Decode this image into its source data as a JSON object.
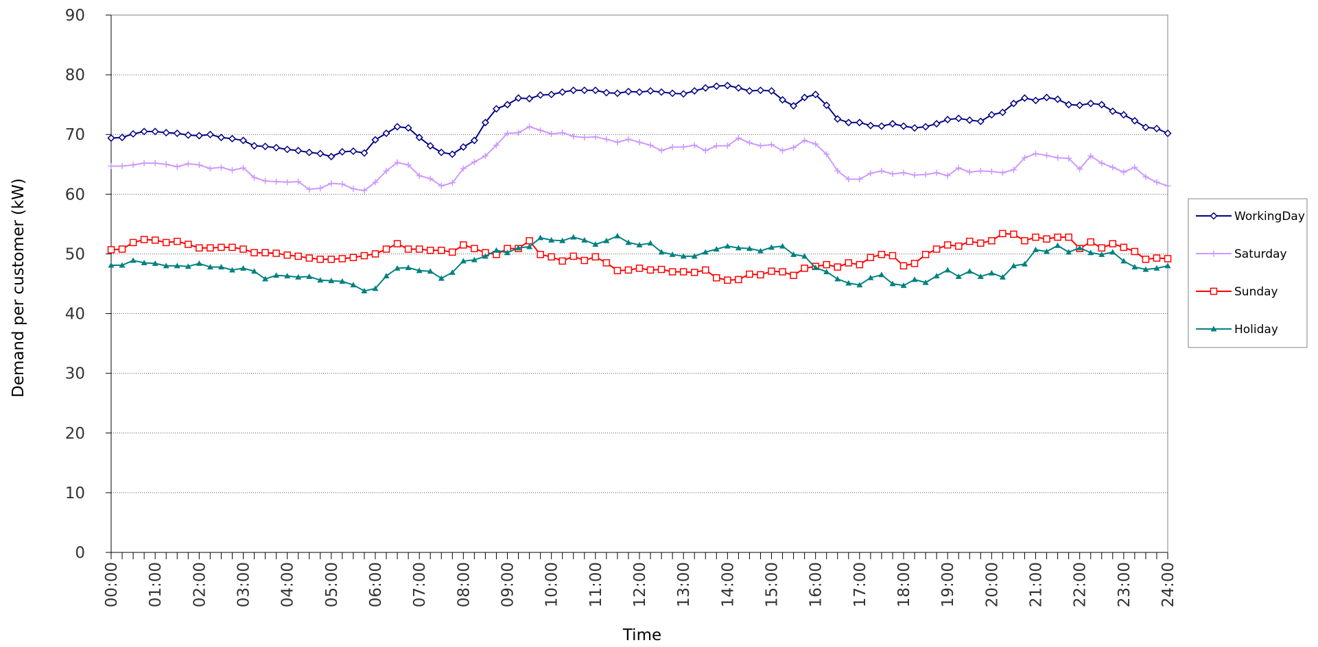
{
  "chart_data": {
    "type": "line",
    "x_label": "Time",
    "y_label": "Demand per customer (kW)",
    "categories": [
      "00:00",
      null,
      null,
      null,
      "01:00",
      null,
      null,
      null,
      "02:00",
      null,
      null,
      null,
      "03:00",
      null,
      null,
      null,
      "04:00",
      null,
      null,
      null,
      "05:00",
      null,
      null,
      null,
      "06:00",
      null,
      null,
      null,
      "07:00",
      null,
      null,
      null,
      "08:00",
      null,
      null,
      null,
      "09:00",
      null,
      null,
      null,
      "10:00",
      null,
      null,
      null,
      "11:00",
      null,
      null,
      null,
      "12:00",
      null,
      null,
      null,
      "13:00",
      null,
      null,
      null,
      "14:00",
      null,
      null,
      null,
      "15:00",
      null,
      null,
      null,
      "16:00",
      null,
      null,
      null,
      "17:00",
      null,
      null,
      null,
      "18:00",
      null,
      null,
      null,
      "19:00",
      null,
      null,
      null,
      "20:00",
      null,
      null,
      null,
      "21:00",
      null,
      null,
      null,
      "22:00",
      null,
      null,
      null,
      "23:00",
      null,
      null,
      null,
      "24:00"
    ],
    "ylim": [
      0,
      90
    ],
    "yticks": [
      0,
      10,
      20,
      30,
      40,
      50,
      60,
      70,
      80,
      90
    ],
    "grid": true,
    "legend": "right",
    "series": [
      {
        "name": "WorkingDay",
        "color": "#000080",
        "marker": "diamond",
        "values": [
          69.4,
          69.5,
          70.1,
          70.5,
          70.5,
          70.3,
          70.2,
          69.9,
          69.8,
          70.0,
          69.5,
          69.3,
          69.0,
          68.1,
          68.0,
          67.8,
          67.5,
          67.3,
          67.0,
          66.8,
          66.3,
          67.1,
          67.2,
          66.9,
          69.1,
          70.2,
          71.3,
          71.1,
          69.5,
          68.1,
          67.0,
          66.7,
          67.9,
          69.0,
          72.0,
          74.3,
          75.0,
          76.1,
          76.0,
          76.6,
          76.7,
          77.1,
          77.4,
          77.4,
          77.4,
          77.0,
          76.9,
          77.2,
          77.1,
          77.3,
          77.1,
          76.9,
          76.8,
          77.3,
          77.8,
          78.1,
          78.2,
          77.8,
          77.3,
          77.4,
          77.3,
          75.8,
          74.8,
          76.2,
          76.7,
          74.9,
          72.6,
          72.0,
          72.0,
          71.5,
          71.4,
          71.8,
          71.4,
          71.1,
          71.3,
          71.8,
          72.5,
          72.7,
          72.4,
          72.2,
          73.3,
          73.7,
          75.2,
          76.1,
          75.7,
          76.2,
          75.9,
          75.0,
          74.9,
          75.2,
          75.0,
          73.9,
          73.3,
          72.3,
          71.2,
          71.0,
          70.2
        ]
      },
      {
        "name": "Saturday",
        "color": "#cc99ff",
        "marker": "plus",
        "values": [
          64.7,
          64.7,
          64.9,
          65.2,
          65.2,
          65.0,
          64.6,
          65.1,
          64.9,
          64.3,
          64.5,
          64.0,
          64.4,
          62.8,
          62.2,
          62.1,
          62.0,
          62.1,
          60.8,
          61.0,
          61.8,
          61.7,
          60.9,
          60.6,
          62.0,
          63.9,
          65.3,
          64.9,
          63.1,
          62.6,
          61.4,
          61.9,
          64.3,
          65.4,
          66.4,
          68.2,
          70.2,
          70.3,
          71.3,
          70.7,
          70.1,
          70.3,
          69.7,
          69.5,
          69.6,
          69.2,
          68.7,
          69.2,
          68.7,
          68.2,
          67.3,
          67.9,
          67.9,
          68.2,
          67.3,
          68.1,
          68.1,
          69.4,
          68.6,
          68.1,
          68.3,
          67.3,
          67.8,
          69.0,
          68.4,
          66.7,
          63.9,
          62.5,
          62.5,
          63.5,
          63.9,
          63.4,
          63.6,
          63.2,
          63.3,
          63.6,
          63.1,
          64.4,
          63.7,
          63.9,
          63.8,
          63.6,
          64.1,
          66.1,
          66.8,
          66.5,
          66.1,
          66.0,
          64.2,
          66.4,
          65.2,
          64.5,
          63.7,
          64.5,
          62.9,
          62.0,
          61.4
        ]
      },
      {
        "name": "Sunday",
        "color": "#ff0000",
        "marker": "square",
        "values": [
          50.7,
          50.8,
          51.9,
          52.4,
          52.3,
          51.9,
          52.1,
          51.6,
          51.0,
          51.0,
          51.1,
          51.1,
          50.8,
          50.2,
          50.2,
          50.1,
          49.8,
          49.6,
          49.3,
          49.1,
          49.1,
          49.2,
          49.4,
          49.7,
          50.0,
          50.8,
          51.7,
          50.8,
          50.8,
          50.6,
          50.6,
          50.3,
          51.5,
          50.9,
          50.2,
          49.9,
          50.9,
          50.9,
          52.2,
          49.9,
          49.5,
          48.8,
          49.6,
          48.9,
          49.5,
          48.5,
          47.2,
          47.3,
          47.6,
          47.3,
          47.4,
          47.0,
          47.0,
          46.9,
          47.3,
          46.0,
          45.6,
          45.7,
          46.6,
          46.5,
          47.1,
          47.0,
          46.4,
          47.6,
          47.9,
          48.2,
          47.8,
          48.5,
          48.2,
          49.4,
          49.9,
          49.7,
          48.0,
          48.4,
          49.9,
          50.8,
          51.5,
          51.3,
          52.1,
          51.8,
          52.2,
          53.4,
          53.3,
          52.2,
          52.8,
          52.5,
          52.8,
          52.8,
          50.9,
          52.0,
          51.0,
          51.7,
          51.1,
          50.4,
          49.1,
          49.3,
          49.2
        ]
      },
      {
        "name": "Holiday",
        "color": "#008080",
        "marker": "triangle",
        "values": [
          48.1,
          48.1,
          48.9,
          48.5,
          48.4,
          48.0,
          48.0,
          47.9,
          48.4,
          47.8,
          47.8,
          47.3,
          47.6,
          47.1,
          45.8,
          46.4,
          46.3,
          46.1,
          46.2,
          45.6,
          45.5,
          45.4,
          44.8,
          43.8,
          44.2,
          46.3,
          47.6,
          47.7,
          47.2,
          47.1,
          45.9,
          46.9,
          48.8,
          49.0,
          49.6,
          50.6,
          50.2,
          51.0,
          51.2,
          52.7,
          52.3,
          52.2,
          52.8,
          52.3,
          51.6,
          52.2,
          53.0,
          51.9,
          51.5,
          51.8,
          50.3,
          49.9,
          49.6,
          49.6,
          50.3,
          50.8,
          51.3,
          51.0,
          50.9,
          50.5,
          51.1,
          51.3,
          49.9,
          49.6,
          47.7,
          47.0,
          45.8,
          45.1,
          44.8,
          46.0,
          46.5,
          45.0,
          44.7,
          45.7,
          45.2,
          46.3,
          47.3,
          46.2,
          47.1,
          46.2,
          46.8,
          46.1,
          48.0,
          48.3,
          50.7,
          50.4,
          51.4,
          50.3,
          51.0,
          50.2,
          49.9,
          50.3,
          48.8,
          47.8,
          47.4,
          47.6,
          48.0
        ]
      }
    ]
  }
}
